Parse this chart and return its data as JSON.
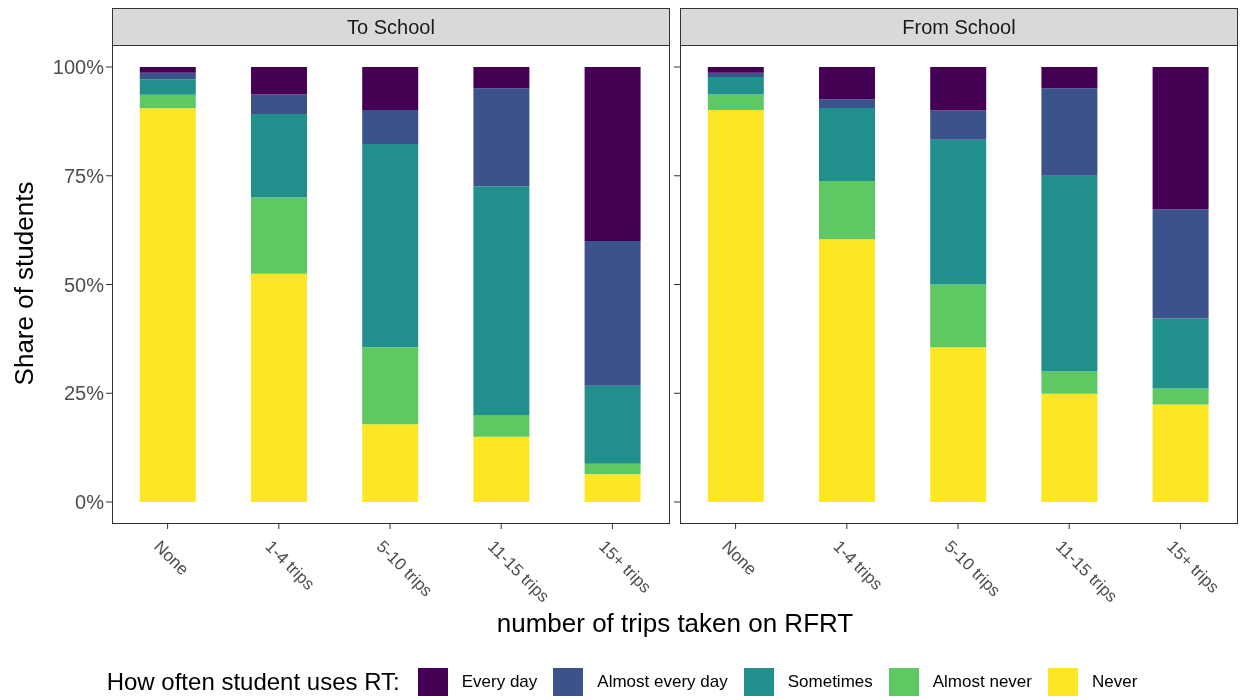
{
  "chart_data": [
    {
      "type": "bar",
      "title": "To School",
      "categories": [
        "None",
        "1-4 trips",
        "5-10 trips",
        "11-15 trips",
        "15+ trips"
      ],
      "stacked": true,
      "ylim": [
        0,
        100
      ],
      "yticks": [
        {
          "value": 0,
          "label": "0%"
        },
        {
          "value": 25,
          "label": "25%"
        },
        {
          "value": 50,
          "label": "50%"
        },
        {
          "value": 75,
          "label": "75%"
        },
        {
          "value": 100,
          "label": "100%"
        }
      ],
      "ylabel": "Share of students",
      "xlabel": "number of trips taken on RFRT",
      "legend": "bottom",
      "legend_title": "How often student uses RT:",
      "series": [
        {
          "name": "Never",
          "color": "#fde725",
          "values": [
            90.5,
            52.5,
            17.9,
            15.0,
            6.4
          ]
        },
        {
          "name": "Almost never",
          "color": "#5ec962",
          "values": [
            3.1,
            17.5,
            17.7,
            5.0,
            2.4
          ]
        },
        {
          "name": "Sometimes",
          "color": "#21908c",
          "values": [
            3.6,
            19.2,
            46.7,
            52.6,
            17.9
          ]
        },
        {
          "name": "Almost every day",
          "color": "#3b528b",
          "values": [
            1.5,
            4.5,
            7.8,
            22.5,
            33.3
          ]
        },
        {
          "name": "Every day",
          "color": "#440154",
          "values": [
            1.3,
            6.3,
            9.9,
            4.9,
            40.0
          ]
        }
      ]
    },
    {
      "type": "bar",
      "title": "From School",
      "categories": [
        "None",
        "1-4 trips",
        "5-10 trips",
        "11-15 trips",
        "15+ trips"
      ],
      "stacked": true,
      "ylim": [
        0,
        100
      ],
      "yticks": [
        {
          "value": 0,
          "label": null
        },
        {
          "value": 25,
          "label": null
        },
        {
          "value": 50,
          "label": null
        },
        {
          "value": 75,
          "label": null
        },
        {
          "value": 100,
          "label": null
        }
      ],
      "tick_labels": "x",
      "series": [
        {
          "color": "#fde725",
          "values": [
            90.1,
            60.4,
            35.6,
            24.9,
            22.4
          ]
        },
        {
          "color": "#5ec962",
          "values": [
            3.6,
            13.4,
            14.4,
            5.1,
            3.7
          ]
        },
        {
          "color": "#21908c",
          "values": [
            4.0,
            16.8,
            33.3,
            45.0,
            16.1
          ]
        },
        {
          "color": "#3b528b",
          "values": [
            1.0,
            2.0,
            6.7,
            20.1,
            25.1
          ]
        },
        {
          "color": "#440154",
          "values": [
            1.3,
            7.4,
            10.0,
            4.9,
            32.7
          ]
        }
      ]
    }
  ]
}
